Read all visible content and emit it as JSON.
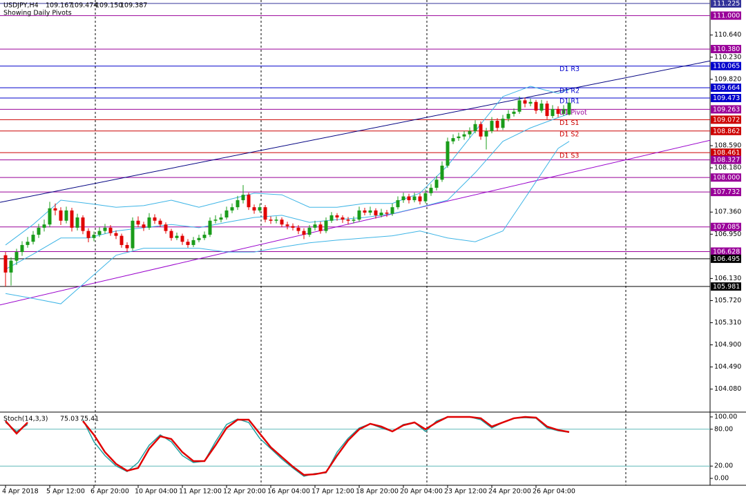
{
  "chart_data": {
    "type": "candlestick",
    "title": "USDJPY,H4",
    "quote_labels": [
      "109.167",
      "109.474",
      "109.150",
      "109.387"
    ],
    "subtitle": "Showing Daily Pivots",
    "up_color": "#1a9c1a",
    "down_color": "#e00000",
    "ylim": [
      103.667,
      111.289
    ],
    "yticks": [
      {
        "value": 110.64,
        "label": "110.640"
      },
      {
        "value": 110.23,
        "label": "110.230"
      },
      {
        "value": 109.82,
        "label": "109.820"
      },
      {
        "value": 108.59,
        "label": "108.590"
      },
      {
        "value": 108.18,
        "label": "108.180"
      },
      {
        "value": 107.36,
        "label": "107.360"
      },
      {
        "value": 106.95,
        "label": "106.950"
      },
      {
        "value": 106.13,
        "label": "106.130"
      },
      {
        "value": 105.72,
        "label": "105.720"
      },
      {
        "value": 105.31,
        "label": "105.310"
      },
      {
        "value": 104.9,
        "label": "104.900"
      },
      {
        "value": 104.49,
        "label": "104.490"
      },
      {
        "value": 104.08,
        "label": "104.080"
      }
    ],
    "xticks": [
      {
        "value": 0,
        "label": "4 Apr 2018"
      },
      {
        "value": 8,
        "label": "5 Apr 12:00"
      },
      {
        "value": 16,
        "label": "6 Apr 20:00"
      },
      {
        "value": 24,
        "label": "10 Apr 04:00"
      },
      {
        "value": 32,
        "label": "11 Apr 12:00"
      },
      {
        "value": 40,
        "label": "12 Apr 20:00"
      },
      {
        "value": 48,
        "label": "16 Apr 04:00"
      },
      {
        "value": 56,
        "label": "17 Apr 12:00"
      },
      {
        "value": 64,
        "label": "18 Apr 20:00"
      },
      {
        "value": 72,
        "label": "20 Apr 04:00"
      },
      {
        "value": 80,
        "label": "23 Apr 12:00"
      },
      {
        "value": 88,
        "label": "24 Apr 20:00"
      },
      {
        "value": 96,
        "label": "26 Apr 04:00"
      }
    ],
    "ohlc": [
      [
        106.56,
        106.62,
        105.98,
        106.24
      ],
      [
        106.24,
        106.52,
        106.0,
        106.46
      ],
      [
        106.46,
        106.68,
        106.38,
        106.62
      ],
      [
        106.62,
        106.82,
        106.55,
        106.75
      ],
      [
        106.75,
        106.9,
        106.7,
        106.81
      ],
      [
        106.81,
        107.01,
        106.76,
        106.94
      ],
      [
        106.94,
        107.14,
        106.88,
        107.07
      ],
      [
        107.07,
        107.22,
        107.0,
        107.13
      ],
      [
        107.13,
        107.55,
        107.08,
        107.43
      ],
      [
        107.43,
        107.52,
        107.3,
        107.39
      ],
      [
        107.39,
        107.45,
        107.12,
        107.2
      ],
      [
        107.2,
        107.46,
        107.15,
        107.39
      ],
      [
        107.39,
        107.44,
        107.0,
        107.07
      ],
      [
        107.07,
        107.33,
        107.02,
        107.26
      ],
      [
        107.26,
        107.3,
        106.95,
        107.01
      ],
      [
        107.01,
        107.06,
        106.8,
        106.88
      ],
      [
        106.88,
        107.0,
        106.82,
        106.94
      ],
      [
        106.94,
        107.08,
        106.9,
        107.01
      ],
      [
        107.01,
        107.14,
        106.96,
        107.07
      ],
      [
        107.07,
        107.12,
        106.92,
        106.97
      ],
      [
        106.97,
        107.02,
        106.86,
        106.92
      ],
      [
        106.92,
        106.96,
        106.7,
        106.75
      ],
      [
        106.75,
        106.8,
        106.62,
        106.69
      ],
      [
        106.69,
        107.26,
        106.65,
        107.2
      ],
      [
        107.2,
        107.28,
        107.08,
        107.13
      ],
      [
        107.13,
        107.18,
        107.01,
        107.07
      ],
      [
        107.07,
        107.34,
        107.03,
        107.26
      ],
      [
        107.26,
        107.32,
        107.14,
        107.2
      ],
      [
        107.2,
        107.24,
        107.08,
        107.13
      ],
      [
        107.13,
        107.17,
        106.96,
        107.01
      ],
      [
        107.01,
        107.05,
        106.83,
        106.88
      ],
      [
        106.88,
        106.98,
        106.84,
        106.92
      ],
      [
        106.92,
        106.96,
        106.75,
        106.81
      ],
      [
        106.81,
        106.86,
        106.7,
        106.75
      ],
      [
        106.75,
        106.9,
        106.71,
        106.84
      ],
      [
        106.84,
        106.94,
        106.8,
        106.88
      ],
      [
        106.88,
        107.0,
        106.84,
        106.94
      ],
      [
        106.94,
        107.26,
        106.9,
        107.2
      ],
      [
        107.2,
        107.3,
        107.15,
        107.22
      ],
      [
        107.22,
        107.33,
        107.17,
        107.26
      ],
      [
        107.26,
        107.46,
        107.22,
        107.39
      ],
      [
        107.39,
        107.52,
        107.34,
        107.45
      ],
      [
        107.45,
        107.66,
        107.4,
        107.58
      ],
      [
        107.58,
        107.86,
        107.52,
        107.68
      ],
      [
        107.68,
        107.72,
        107.4,
        107.45
      ],
      [
        107.45,
        107.5,
        107.33,
        107.39
      ],
      [
        107.39,
        107.52,
        107.35,
        107.45
      ],
      [
        107.45,
        107.49,
        107.17,
        107.22
      ],
      [
        107.22,
        107.28,
        107.14,
        107.2
      ],
      [
        107.2,
        107.28,
        107.15,
        107.22
      ],
      [
        107.22,
        107.26,
        107.08,
        107.13
      ],
      [
        107.13,
        107.18,
        107.04,
        107.1
      ],
      [
        107.1,
        107.15,
        107.02,
        107.07
      ],
      [
        107.07,
        107.12,
        106.95,
        107.01
      ],
      [
        107.01,
        107.06,
        106.86,
        106.94
      ],
      [
        106.94,
        107.12,
        106.9,
        107.07
      ],
      [
        107.07,
        107.2,
        107.02,
        107.13
      ],
      [
        107.13,
        107.18,
        106.96,
        107.01
      ],
      [
        107.01,
        107.26,
        106.97,
        107.2
      ],
      [
        107.2,
        107.36,
        107.16,
        107.3
      ],
      [
        107.3,
        107.34,
        107.2,
        107.26
      ],
      [
        107.26,
        107.3,
        107.16,
        107.22
      ],
      [
        107.22,
        107.27,
        107.13,
        107.2
      ],
      [
        107.2,
        107.28,
        107.15,
        107.22
      ],
      [
        107.22,
        107.46,
        107.18,
        107.39
      ],
      [
        107.39,
        107.44,
        107.3,
        107.35
      ],
      [
        107.35,
        107.46,
        107.3,
        107.39
      ],
      [
        107.39,
        107.43,
        107.24,
        107.3
      ],
      [
        107.3,
        107.42,
        107.26,
        107.35
      ],
      [
        107.35,
        107.4,
        107.27,
        107.33
      ],
      [
        107.33,
        107.52,
        107.29,
        107.45
      ],
      [
        107.45,
        107.65,
        107.41,
        107.58
      ],
      [
        107.58,
        107.72,
        107.53,
        107.65
      ],
      [
        107.65,
        107.7,
        107.52,
        107.58
      ],
      [
        107.58,
        107.72,
        107.54,
        107.65
      ],
      [
        107.65,
        107.7,
        107.5,
        107.56
      ],
      [
        107.56,
        107.78,
        107.52,
        107.71
      ],
      [
        107.71,
        107.88,
        107.66,
        107.81
      ],
      [
        107.81,
        108.03,
        107.76,
        107.96
      ],
      [
        107.96,
        108.3,
        107.92,
        108.22
      ],
      [
        108.22,
        108.74,
        108.18,
        108.67
      ],
      [
        108.67,
        108.8,
        108.62,
        108.73
      ],
      [
        108.73,
        108.83,
        108.68,
        108.76
      ],
      [
        108.76,
        108.86,
        108.7,
        108.8
      ],
      [
        108.8,
        108.93,
        108.74,
        108.86
      ],
      [
        108.86,
        109.06,
        108.82,
        108.99
      ],
      [
        108.99,
        109.04,
        108.7,
        108.76
      ],
      [
        108.76,
        108.92,
        108.52,
        108.86
      ],
      [
        108.86,
        109.12,
        108.82,
        109.05
      ],
      [
        109.05,
        109.1,
        108.86,
        108.92
      ],
      [
        108.92,
        109.16,
        108.88,
        109.09
      ],
      [
        109.09,
        109.25,
        109.04,
        109.18
      ],
      [
        109.18,
        109.28,
        109.13,
        109.22
      ],
      [
        109.22,
        109.5,
        109.18,
        109.43
      ],
      [
        109.43,
        109.48,
        109.3,
        109.37
      ],
      [
        109.37,
        109.46,
        109.32,
        109.4
      ],
      [
        109.4,
        109.44,
        109.18,
        109.24
      ],
      [
        109.24,
        109.44,
        109.2,
        109.37
      ],
      [
        109.37,
        109.42,
        109.08,
        109.14
      ],
      [
        109.14,
        109.34,
        109.1,
        109.27
      ],
      [
        109.27,
        109.32,
        109.12,
        109.18
      ],
      [
        109.18,
        109.34,
        109.14,
        109.27
      ],
      [
        109.167,
        109.474,
        109.15,
        109.387
      ]
    ],
    "bollinger": {
      "color": "#3cb4e6",
      "x": [
        0,
        5,
        10,
        15,
        20,
        25,
        30,
        35,
        40,
        45,
        50,
        55,
        60,
        65,
        70,
        75,
        80,
        85,
        90,
        95,
        100,
        102
      ],
      "upper": [
        106.75,
        107.13,
        107.58,
        107.52,
        107.45,
        107.48,
        107.58,
        107.45,
        107.58,
        107.71,
        107.68,
        107.45,
        107.45,
        107.52,
        107.52,
        107.71,
        108.22,
        108.86,
        109.5,
        109.69,
        109.56,
        109.63
      ],
      "middle": [
        106.3,
        106.58,
        106.88,
        106.88,
        107.01,
        107.07,
        107.13,
        107.07,
        107.17,
        107.26,
        107.3,
        107.17,
        107.22,
        107.26,
        107.33,
        107.45,
        107.58,
        108.09,
        108.67,
        108.92,
        109.11,
        109.18
      ],
      "lower": [
        105.85,
        105.76,
        105.66,
        106.11,
        106.56,
        106.69,
        106.69,
        106.69,
        106.62,
        106.62,
        106.71,
        106.79,
        106.84,
        106.88,
        106.92,
        107.01,
        106.88,
        106.81,
        107.01,
        107.77,
        108.54,
        108.67
      ]
    },
    "trendlines": [
      {
        "color": "#000080",
        "points": [
          [
            -1,
            107.54
          ],
          [
            127.5,
            110.16
          ]
        ]
      },
      {
        "color": "#9900cc",
        "points": [
          [
            -1,
            105.64
          ],
          [
            127.5,
            108.69
          ]
        ]
      }
    ],
    "levels": [
      {
        "value": 111.225,
        "label": "111.225",
        "color": "#333399"
      },
      {
        "value": 111.0,
        "label": "111.000",
        "color": "#990099"
      },
      {
        "value": 110.38,
        "label": "110.380",
        "color": "#990099"
      },
      {
        "value": 110.065,
        "label": "110.065",
        "color": "#0000cc",
        "text": "D1 R3"
      },
      {
        "value": 109.664,
        "label": "109.664",
        "color": "#0000cc",
        "text": "D1 R2"
      },
      {
        "value": 109.473,
        "label": "109.473",
        "color": "#0000cc",
        "text": "D1 R1"
      },
      {
        "value": 109.263,
        "label": "109.263",
        "color": "#990099",
        "text": "D1 Pivot"
      },
      {
        "value": 109.072,
        "label": "109.072",
        "color": "#cc0000",
        "text": "D1 S1"
      },
      {
        "value": 108.862,
        "label": "108.862",
        "color": "#cc0000",
        "text": "D1 S2"
      },
      {
        "value": 108.461,
        "label": "108.461",
        "color": "#cc0000",
        "text": "D1 S3"
      },
      {
        "value": 108.327,
        "label": "108.327",
        "color": "#990099"
      },
      {
        "value": 108.0,
        "label": "108.000",
        "color": "#990099"
      },
      {
        "value": 107.732,
        "label": "107.732",
        "color": "#990099"
      },
      {
        "value": 107.085,
        "label": "107.085",
        "color": "#990099"
      },
      {
        "value": 106.628,
        "label": "106.628",
        "color": "#990099"
      },
      {
        "value": 106.495,
        "label": "106.495",
        "color": "#000000"
      },
      {
        "value": 105.981,
        "label": "105.981",
        "color": "#000000"
      }
    ],
    "stoch": {
      "title": "Stoch(14,3,3)",
      "ylim": [
        -11.2,
        106.7
      ],
      "yticks": [
        {
          "value": 100,
          "label": "100.00"
        },
        {
          "value": 80,
          "label": "80.00"
        },
        {
          "value": 20,
          "label": "20.00"
        },
        {
          "value": 0,
          "label": "0.00"
        }
      ],
      "levels": [
        80,
        20
      ],
      "level_color": "#5fb8b8",
      "x": [
        0,
        2,
        4,
        6,
        8,
        10,
        12,
        14,
        16,
        18,
        20,
        22,
        24,
        26,
        28,
        30,
        32,
        34,
        36,
        38,
        40,
        42,
        44,
        46,
        48,
        50,
        52,
        54,
        56,
        58,
        60,
        62,
        64,
        66,
        68,
        70,
        72,
        74,
        76,
        78,
        80,
        82,
        84,
        86,
        88,
        90,
        92,
        94,
        96,
        98,
        100,
        102
      ],
      "main": [
        91.0,
        76.4,
        87.6,
        null,
        null,
        null,
        null,
        95.5,
        59.6,
        37.1,
        20.2,
        11.2,
        25.8,
        53.9,
        70.8,
        59.6,
        37.1,
        25.8,
        28.1,
        59.6,
        87.6,
        96.6,
        91.0,
        65.2,
        48.3,
        31.5,
        16.9,
        3.4,
        7.9,
        9.0,
        42.7,
        65.2,
        82.0,
        88.8,
        82.0,
        76.4,
        87.6,
        91.0,
        76.4,
        93.3,
        100,
        100,
        100,
        95.5,
        82.0,
        91.0,
        97.8,
        98.9,
        97.8,
        82.0,
        77.5,
        75.03
      ],
      "signal": [
        93.3,
        73.0,
        91.0,
        null,
        null,
        null,
        null,
        93.3,
        70.8,
        42.7,
        23.6,
        12.4,
        16.9,
        48.3,
        68.5,
        64.0,
        42.7,
        28.1,
        28.1,
        53.9,
        82.0,
        95.5,
        95.5,
        73.0,
        50.6,
        34.8,
        19.1,
        5.6,
        6.7,
        10.1,
        37.1,
        61.8,
        79.8,
        88.8,
        84.3,
        76.4,
        86.5,
        91.0,
        79.8,
        91.0,
        100,
        100,
        100,
        97.8,
        84.3,
        91.0,
        97.8,
        100,
        98.9,
        84.3,
        78.7,
        75.41
      ],
      "main_color": "#20a0a0",
      "signal_color": "#e00000"
    }
  }
}
